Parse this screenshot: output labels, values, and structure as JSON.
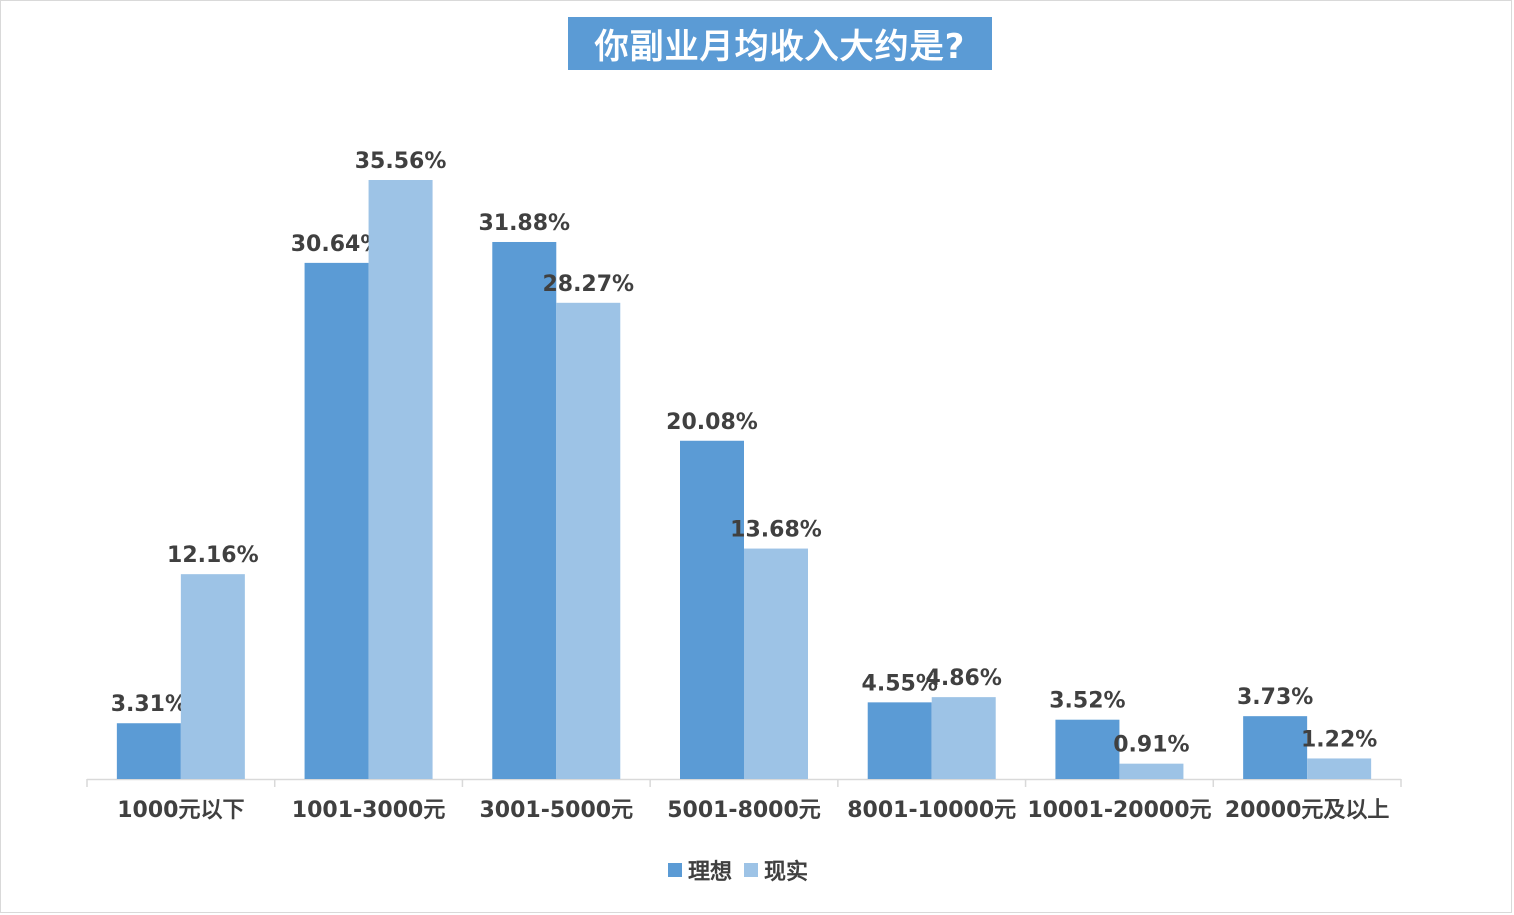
{
  "title": "你副业月均收入大约是?",
  "chart_data": {
    "type": "bar",
    "title": "你副业月均收入大约是?",
    "categories": [
      "1000元以下",
      "1001-3000元",
      "3001-5000元",
      "5001-8000元",
      "8001-10000元",
      "10001-20000元",
      "20000元及以上"
    ],
    "series": [
      {
        "name": "理想",
        "color": "#5b9bd5",
        "values": [
          3.31,
          30.64,
          31.88,
          20.08,
          4.55,
          3.52,
          3.73
        ],
        "labels": [
          "3.31%",
          "30.64%",
          "31.88%",
          "20.08%",
          "4.55%",
          "3.52%",
          "3.73%"
        ]
      },
      {
        "name": "现实",
        "color": "#9dc3e6",
        "values": [
          12.16,
          35.56,
          28.27,
          13.68,
          4.86,
          0.91,
          1.22
        ],
        "labels": [
          "12.16%",
          "35.56%",
          "28.27%",
          "13.68%",
          "4.86%",
          "0.91%",
          "1.22%"
        ]
      }
    ],
    "legend_position": "bottom",
    "grid": false
  }
}
